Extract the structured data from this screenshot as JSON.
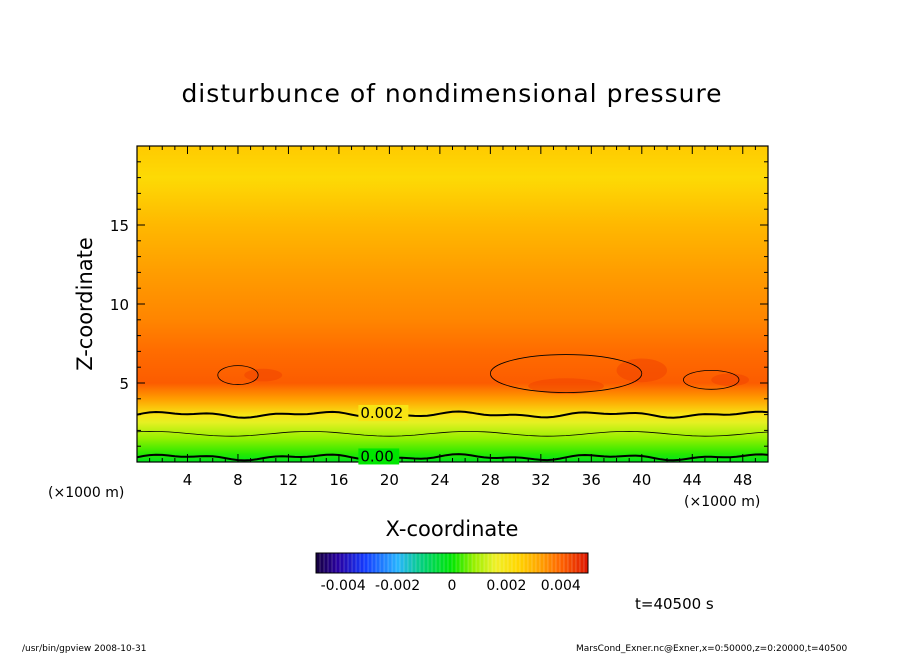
{
  "chart_data": {
    "type": "heatmap",
    "title": "disturbunce of nondimensional pressure",
    "xlabel": "X-coordinate",
    "ylabel": "Z-coordinate",
    "x_unit": "(×1000 m)",
    "y_unit": "(×1000 m)",
    "x_ticks": [
      4,
      8,
      12,
      16,
      20,
      24,
      28,
      32,
      36,
      40,
      44,
      48
    ],
    "y_ticks": [
      5,
      10,
      15
    ],
    "xlim": [
      0,
      50
    ],
    "ylim": [
      0,
      20
    ],
    "z_profile": [
      {
        "z": 0.0,
        "value": -0.0003
      },
      {
        "z": 0.5,
        "value": 0.0002
      },
      {
        "z": 1.5,
        "value": 0.0008
      },
      {
        "z": 2.5,
        "value": 0.0015
      },
      {
        "z": 3.0,
        "value": 0.002
      },
      {
        "z": 4.0,
        "value": 0.0033
      },
      {
        "z": 5.0,
        "value": 0.0041
      },
      {
        "z": 7.0,
        "value": 0.0039
      },
      {
        "z": 9.0,
        "value": 0.0036
      },
      {
        "z": 12.0,
        "value": 0.0033
      },
      {
        "z": 15.0,
        "value": 0.0029
      },
      {
        "z": 18.0,
        "value": 0.0023
      },
      {
        "z": 20.0,
        "value": 0.0026
      }
    ],
    "contour_levels": [
      {
        "value": 0.002,
        "label": "0.002",
        "label_x": 17.7,
        "label_z": 3.1,
        "bold": true
      },
      {
        "value": 0.0,
        "label": "0.00",
        "label_x": 17.7,
        "label_z": 0.35,
        "bold": true
      }
    ],
    "colorbar": {
      "range": [
        -0.005,
        0.005
      ],
      "tick_labels": [
        "-0.004",
        "-0.002",
        "0",
        "0.002",
        "0.004"
      ],
      "tick_values": [
        -0.004,
        -0.002,
        0,
        0.002,
        0.004
      ]
    },
    "grid": false,
    "legend_placement": "bottom-center"
  },
  "time_label": "t=40500 s",
  "footer_left": "/usr/bin/gpview  2008-10-31",
  "footer_right": "MarsCond_Exner.nc@Exner,x=0:50000,z=0:20000,t=40500"
}
